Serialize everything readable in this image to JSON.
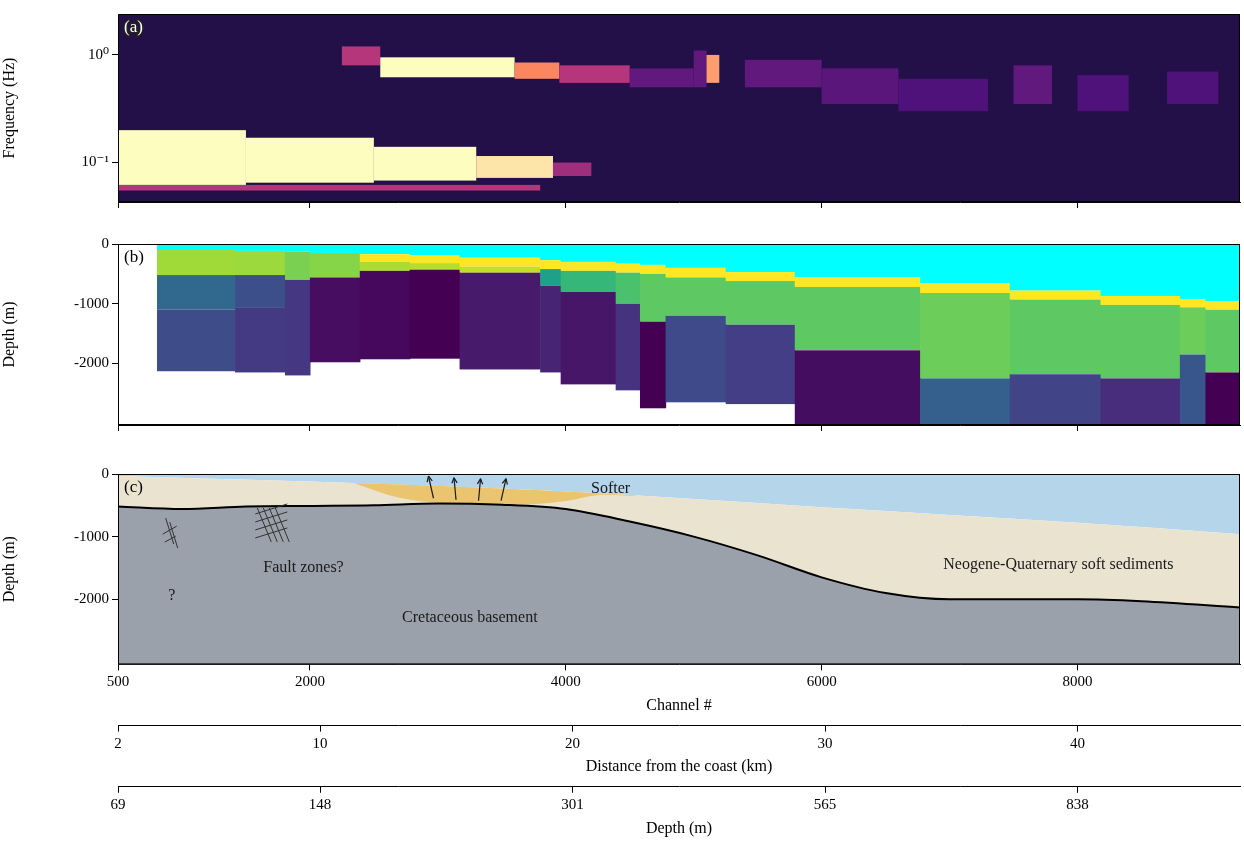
{
  "chart_data": [
    {
      "type": "heatmap",
      "panel_label": "(a)",
      "ylabel": "Frequency (Hz)",
      "xlim": [
        500,
        9270
      ],
      "xticks": [
        500,
        2000,
        4000,
        6000,
        8000
      ],
      "ylim": [
        0.043,
        2.4
      ],
      "yticks": [
        {
          "value": 1,
          "label": "10⁰"
        },
        {
          "value": 0.1,
          "label": "10⁻¹"
        }
      ],
      "log": "y",
      "grid": false,
      "tick_labels": "y",
      "cells": [
        {
          "x": [
            500,
            3800
          ],
          "y": [
            0.055,
            0.062
          ],
          "level": 0.5
        },
        {
          "x": [
            500,
            1500
          ],
          "y": [
            0.062,
            0.2
          ],
          "level": 1.0
        },
        {
          "x": [
            1500,
            2500
          ],
          "y": [
            0.065,
            0.17
          ],
          "level": 1.0
        },
        {
          "x": [
            2500,
            3300
          ],
          "y": [
            0.068,
            0.14
          ],
          "level": 1.0
        },
        {
          "x": [
            3300,
            3900
          ],
          "y": [
            0.072,
            0.115
          ],
          "level": 0.95
        },
        {
          "x": [
            3900,
            4200
          ],
          "y": [
            0.075,
            0.1
          ],
          "level": 0.45
        },
        {
          "x": [
            2250,
            2550
          ],
          "y": [
            0.8,
            1.2
          ],
          "level": 0.5
        },
        {
          "x": [
            2550,
            3600
          ],
          "y": [
            0.62,
            0.95
          ],
          "level": 1.0
        },
        {
          "x": [
            3600,
            3950
          ],
          "y": [
            0.6,
            0.85
          ],
          "level": 0.75
        },
        {
          "x": [
            3950,
            4500
          ],
          "y": [
            0.55,
            0.8
          ],
          "level": 0.5
        },
        {
          "x": [
            4500,
            5000
          ],
          "y": [
            0.5,
            0.75
          ],
          "level": 0.3
        },
        {
          "x": [
            5000,
            5100
          ],
          "y": [
            0.5,
            1.1
          ],
          "level": 0.3
        },
        {
          "x": [
            5100,
            5200
          ],
          "y": [
            0.55,
            1.0
          ],
          "level": 0.8
        },
        {
          "x": [
            5400,
            6000
          ],
          "y": [
            0.5,
            0.9
          ],
          "level": 0.3
        },
        {
          "x": [
            6000,
            6600
          ],
          "y": [
            0.35,
            0.75
          ],
          "level": 0.28
        },
        {
          "x": [
            6600,
            7300
          ],
          "y": [
            0.3,
            0.6
          ],
          "level": 0.25
        },
        {
          "x": [
            7500,
            7800
          ],
          "y": [
            0.35,
            0.8
          ],
          "level": 0.3
        },
        {
          "x": [
            8000,
            8400
          ],
          "y": [
            0.3,
            0.65
          ],
          "level": 0.25
        },
        {
          "x": [
            8700,
            9100
          ],
          "y": [
            0.35,
            0.7
          ],
          "level": 0.25
        }
      ]
    },
    {
      "type": "columns",
      "panel_label": "(b)",
      "ylabel": "Depth (m)",
      "xlim": [
        500,
        9270
      ],
      "xticks": [
        500,
        2000,
        4000,
        6000,
        8000
      ],
      "ylim": [
        -3030,
        0
      ],
      "yticks": [
        0,
        -1000,
        -2000
      ],
      "grid": false,
      "tick_labels": "y",
      "columns": [
        {
          "x": [
            805,
            1415
          ],
          "layers": [
            {
              "bottom": -100,
              "color": "#00ffff"
            },
            {
              "bottom": -520,
              "color": "#a0da39"
            },
            {
              "bottom": -1100,
              "color": "#31688e"
            },
            {
              "bottom": -2130,
              "color": "#3e4c8a"
            }
          ]
        },
        {
          "x": [
            1415,
            1805
          ],
          "layers": [
            {
              "bottom": -115,
              "color": "#00ffff"
            },
            {
              "bottom": -520,
              "color": "#9bd93c"
            },
            {
              "bottom": -1070,
              "color": "#3c4f8a"
            },
            {
              "bottom": -2150,
              "color": "#443a83"
            }
          ]
        },
        {
          "x": [
            1805,
            2000
          ],
          "layers": [
            {
              "bottom": -130,
              "color": "#00ffff"
            },
            {
              "bottom": -600,
              "color": "#7ad151"
            },
            {
              "bottom": -2200,
              "color": "#453781"
            }
          ]
        },
        {
          "x": [
            2000,
            2390
          ],
          "layers": [
            {
              "bottom": -150,
              "color": "#00ffff"
            },
            {
              "bottom": -560,
              "color": "#86d549"
            },
            {
              "bottom": -1980,
              "color": "#470d60"
            }
          ]
        },
        {
          "x": [
            2390,
            2780
          ],
          "layers": [
            {
              "bottom": -170,
              "color": "#00ffff"
            },
            {
              "bottom": -300,
              "color": "#fde725"
            },
            {
              "bottom": -450,
              "color": "#addc30"
            },
            {
              "bottom": -1930,
              "color": "#46085c"
            }
          ]
        },
        {
          "x": [
            2780,
            3170
          ],
          "layers": [
            {
              "bottom": -190,
              "color": "#00ffff"
            },
            {
              "bottom": -320,
              "color": "#fde725"
            },
            {
              "bottom": -430,
              "color": "#b5de2b"
            },
            {
              "bottom": -1920,
              "color": "#440154"
            }
          ]
        },
        {
          "x": [
            3170,
            3800
          ],
          "layers": [
            {
              "bottom": -230,
              "color": "#00ffff"
            },
            {
              "bottom": -380,
              "color": "#fde725"
            },
            {
              "bottom": -480,
              "color": "#c2df23"
            },
            {
              "bottom": -2100,
              "color": "#481a6c"
            }
          ]
        },
        {
          "x": [
            3800,
            3960
          ],
          "layers": [
            {
              "bottom": -270,
              "color": "#00ffff"
            },
            {
              "bottom": -420,
              "color": "#fde725"
            },
            {
              "bottom": -700,
              "color": "#1fa088"
            },
            {
              "bottom": -2150,
              "color": "#482475"
            }
          ]
        },
        {
          "x": [
            3960,
            4390
          ],
          "layers": [
            {
              "bottom": -300,
              "color": "#00ffff"
            },
            {
              "bottom": -450,
              "color": "#fde725"
            },
            {
              "bottom": -800,
              "color": "#35b779"
            },
            {
              "bottom": -2350,
              "color": "#481668"
            }
          ]
        },
        {
          "x": [
            4390,
            4580
          ],
          "layers": [
            {
              "bottom": -330,
              "color": "#00ffff"
            },
            {
              "bottom": -480,
              "color": "#fde725"
            },
            {
              "bottom": -1000,
              "color": "#4ac16d"
            },
            {
              "bottom": -2450,
              "color": "#46337f"
            }
          ]
        },
        {
          "x": [
            4580,
            4780
          ],
          "layers": [
            {
              "bottom": -350,
              "color": "#00ffff"
            },
            {
              "bottom": -500,
              "color": "#fde725"
            },
            {
              "bottom": -1300,
              "color": "#5ec962"
            },
            {
              "bottom": -2750,
              "color": "#440154"
            }
          ]
        },
        {
          "x": [
            4780,
            5250
          ],
          "layers": [
            {
              "bottom": -400,
              "color": "#00ffff"
            },
            {
              "bottom": -560,
              "color": "#fde725"
            },
            {
              "bottom": -1200,
              "color": "#5ec962"
            },
            {
              "bottom": -2650,
              "color": "#3e4a89"
            }
          ]
        },
        {
          "x": [
            5250,
            5790
          ],
          "layers": [
            {
              "bottom": -470,
              "color": "#00ffff"
            },
            {
              "bottom": -620,
              "color": "#fde725"
            },
            {
              "bottom": -1350,
              "color": "#5ec962"
            },
            {
              "bottom": -2680,
              "color": "#433e85"
            }
          ]
        },
        {
          "x": [
            5790,
            6770
          ],
          "layers": [
            {
              "bottom": -560,
              "color": "#00ffff"
            },
            {
              "bottom": -720,
              "color": "#fde725"
            },
            {
              "bottom": -1780,
              "color": "#5ec962"
            },
            {
              "bottom": -3030,
              "color": "#450d5f"
            }
          ]
        },
        {
          "x": [
            6770,
            7470
          ],
          "layers": [
            {
              "bottom": -660,
              "color": "#00ffff"
            },
            {
              "bottom": -820,
              "color": "#fde725"
            },
            {
              "bottom": -2250,
              "color": "#6ccd5a"
            },
            {
              "bottom": -3030,
              "color": "#355f8d"
            }
          ]
        },
        {
          "x": [
            7470,
            8180
          ],
          "layers": [
            {
              "bottom": -780,
              "color": "#00ffff"
            },
            {
              "bottom": -930,
              "color": "#fde725"
            },
            {
              "bottom": -2180,
              "color": "#5ec962"
            },
            {
              "bottom": -3030,
              "color": "#414487"
            }
          ]
        },
        {
          "x": [
            8180,
            8800
          ],
          "layers": [
            {
              "bottom": -870,
              "color": "#00ffff"
            },
            {
              "bottom": -1020,
              "color": "#fde725"
            },
            {
              "bottom": -2250,
              "color": "#5ec962"
            },
            {
              "bottom": -3030,
              "color": "#472d7b"
            }
          ]
        },
        {
          "x": [
            8800,
            9000
          ],
          "layers": [
            {
              "bottom": -920,
              "color": "#00ffff"
            },
            {
              "bottom": -1060,
              "color": "#fde725"
            },
            {
              "bottom": -1850,
              "color": "#6ccd5a"
            },
            {
              "bottom": -3030,
              "color": "#39568c"
            }
          ]
        },
        {
          "x": [
            9000,
            9270
          ],
          "layers": [
            {
              "bottom": -960,
              "color": "#00ffff"
            },
            {
              "bottom": -1100,
              "color": "#fde725"
            },
            {
              "bottom": -2150,
              "color": "#5ec962"
            },
            {
              "bottom": -3030,
              "color": "#440154"
            }
          ]
        }
      ]
    },
    {
      "type": "line",
      "panel_label": "(c)",
      "ylabel": "Depth (m)",
      "xlabel": "Channel #",
      "xlim": [
        500,
        9270
      ],
      "xticks": [
        500,
        2000,
        4000,
        6000,
        8000
      ],
      "ylim": [
        -3040,
        0
      ],
      "yticks": [
        0,
        -1000,
        -2000
      ],
      "grid": false,
      "x2": {
        "label": "Distance from the coast (km)",
        "xlim": [
          2,
          46.43
        ],
        "xticks": [
          2,
          10,
          20,
          30,
          40
        ]
      },
      "x3": {
        "label": "Depth (m)",
        "xlim": [
          2,
          46.43
        ],
        "xticks": [
          {
            "value": 2,
            "label": "69"
          },
          {
            "value": 10,
            "label": "148"
          },
          {
            "value": 20,
            "label": "301"
          },
          {
            "value": 30,
            "label": "565"
          },
          {
            "value": 40,
            "label": "838"
          }
        ]
      },
      "seafloor": {
        "x": [
          500,
          2000,
          4000,
          6000,
          8000,
          9270
        ],
        "values": [
          -30,
          -120,
          -280,
          -530,
          -780,
          -960
        ],
        "color_above": "#b5d5ea",
        "color_below": "#e9e3d0"
      },
      "basement_top": {
        "x": [
          500,
          1000,
          1500,
          2000,
          2500,
          3000,
          3500,
          4000,
          4500,
          5000,
          5500,
          6000,
          6500,
          7000,
          8000,
          8500,
          9270
        ],
        "values": [
          -520,
          -560,
          -520,
          -510,
          -500,
          -470,
          -490,
          -560,
          -760,
          -1000,
          -1300,
          -1650,
          -1900,
          -2000,
          -2000,
          -2030,
          -2130
        ],
        "color": "#000000",
        "color_below": "#9aa1aa"
      },
      "softer_zone": {
        "x": [
          2350,
          2700,
          3000,
          3300,
          3600,
          4000,
          4300,
          4550
        ],
        "values": [
          -150,
          -380,
          -460,
          -490,
          -490,
          -430,
          -330,
          -350
        ],
        "color": "#ebc470"
      },
      "annotations": [
        {
          "text": "Softer",
          "x": 4350,
          "y": -230
        },
        {
          "text": "?",
          "x": 920,
          "y": -1950
        },
        {
          "text": "Fault zones?",
          "x": 1950,
          "y": -1500
        },
        {
          "text": "Cretaceous basement",
          "x": 3250,
          "y": -2300
        },
        {
          "text": "Neogene-Quaternary soft sediments",
          "x": 7850,
          "y": -1450
        }
      ]
    }
  ]
}
